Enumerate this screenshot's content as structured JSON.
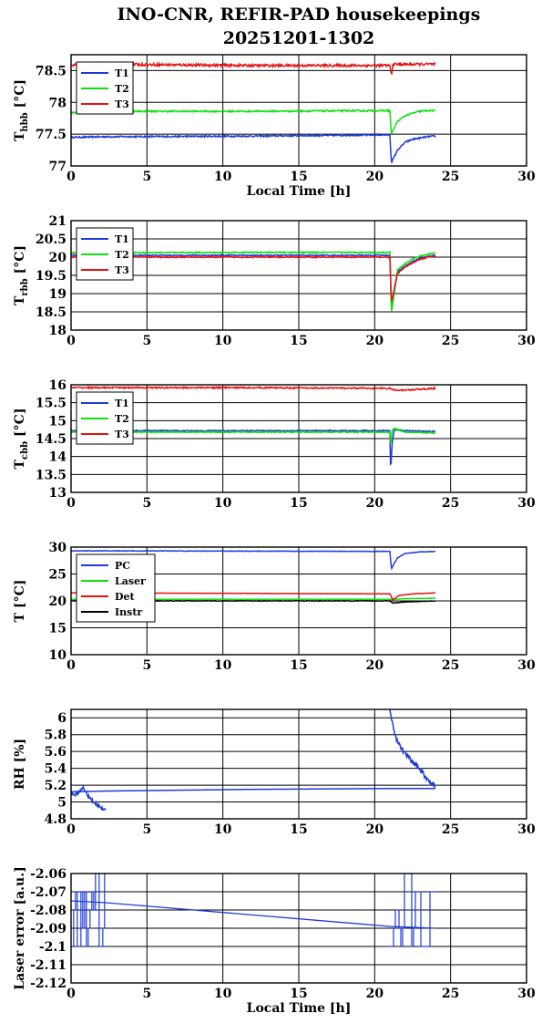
{
  "title": {
    "line1": "INO-CNR, REFIR-PAD housekeepings",
    "line2": "20251201-1302"
  },
  "colors": {
    "blue": "#1f3bd9",
    "green": "#10e010",
    "red": "#e81010",
    "black": "#000000"
  },
  "chart_data": [
    {
      "type": "line",
      "ylabel_main": "T",
      "ylabel_sub": "hbb",
      "ylabel_unit": "[°C]",
      "xlabel": "Local Time [h]",
      "xlim": [
        0,
        30
      ],
      "ylim": [
        77,
        78.75
      ],
      "xticks": [
        0,
        5,
        10,
        15,
        20,
        25,
        30
      ],
      "yticks": [
        77,
        77.5,
        78,
        78.5
      ],
      "ytick_labels": [
        "77",
        "77.5",
        "78",
        "78.5"
      ],
      "legend": "top-left",
      "series": [
        {
          "name": "T1",
          "color": "#1f3bd9",
          "x": [
            0,
            2.3,
            12,
            21,
            21.1,
            21.5,
            22,
            22.5,
            23,
            23.5,
            24
          ],
          "y": [
            77.45,
            77.46,
            77.47,
            77.49,
            77.05,
            77.25,
            77.37,
            77.42,
            77.44,
            77.46,
            77.47
          ],
          "noise": 0.012
        },
        {
          "name": "T2",
          "color": "#10e010",
          "x": [
            0,
            2.3,
            12,
            21,
            21.1,
            21.5,
            22,
            22.5,
            23,
            23.5,
            24
          ],
          "y": [
            77.84,
            77.86,
            77.86,
            77.87,
            77.5,
            77.7,
            77.79,
            77.83,
            77.86,
            77.87,
            77.87
          ],
          "noise": 0.012
        },
        {
          "name": "T3",
          "color": "#e81010",
          "x": [
            0,
            2.3,
            12,
            21,
            21.1,
            21.2,
            22,
            23,
            24
          ],
          "y": [
            78.59,
            78.6,
            78.58,
            78.58,
            78.42,
            78.6,
            78.6,
            78.6,
            78.6
          ],
          "noise": 0.02
        }
      ]
    },
    {
      "type": "line",
      "ylabel_main": "T",
      "ylabel_sub": "rbb",
      "ylabel_unit": "[°C]",
      "xlabel": "",
      "xlim": [
        0,
        30
      ],
      "ylim": [
        18,
        21
      ],
      "xticks": [
        0,
        5,
        10,
        15,
        20,
        25,
        30
      ],
      "yticks": [
        18,
        18.5,
        19,
        19.5,
        20,
        20.5,
        21
      ],
      "ytick_labels": [
        "18",
        "18.5",
        "19",
        "19.5",
        "20",
        "20.5",
        "21"
      ],
      "legend": "top-left",
      "series": [
        {
          "name": "T1",
          "color": "#1f3bd9",
          "x": [
            0,
            12,
            21,
            21.1,
            21.5,
            22,
            22.5,
            23,
            23.5,
            24
          ],
          "y": [
            20.05,
            20.05,
            20.05,
            18.5,
            19.6,
            19.75,
            19.88,
            19.97,
            20.02,
            20.05
          ],
          "noise": 0.015
        },
        {
          "name": "T2",
          "color": "#10e010",
          "x": [
            0,
            12,
            21,
            21.1,
            21.5,
            22,
            22.5,
            23,
            23.5,
            24
          ],
          "y": [
            20.12,
            20.13,
            20.13,
            18.45,
            19.65,
            19.82,
            19.95,
            20.03,
            20.08,
            20.12
          ],
          "noise": 0.015
        },
        {
          "name": "T3",
          "color": "#e81010",
          "x": [
            0,
            12,
            21,
            21.1,
            21.5,
            22,
            22.5,
            23,
            23.5,
            24
          ],
          "y": [
            20.0,
            20.0,
            20.0,
            18.75,
            19.55,
            19.72,
            19.85,
            19.94,
            20.0,
            20.02
          ],
          "noise": 0.015
        }
      ]
    },
    {
      "type": "line",
      "ylabel_main": "T",
      "ylabel_sub": "cbb",
      "ylabel_unit": "[°C]",
      "xlabel": "",
      "xlim": [
        0,
        30
      ],
      "ylim": [
        13,
        16
      ],
      "xticks": [
        0,
        5,
        10,
        15,
        20,
        25,
        30
      ],
      "yticks": [
        13,
        13.5,
        14,
        14.5,
        15,
        15.5,
        16
      ],
      "ytick_labels": [
        "13",
        "13.5",
        "14",
        "14.5",
        "15",
        "15.5",
        "16"
      ],
      "legend": "top-left",
      "series": [
        {
          "name": "T1",
          "color": "#1f3bd9",
          "x": [
            0,
            12,
            21,
            21.05,
            21.15,
            21.3,
            22,
            24
          ],
          "y": [
            14.72,
            14.72,
            14.72,
            13.55,
            14.4,
            14.75,
            14.72,
            14.7
          ],
          "noise": 0.015
        },
        {
          "name": "T2",
          "color": "#10e010",
          "x": [
            0,
            12,
            21,
            21.05,
            21.15,
            21.3,
            22,
            24
          ],
          "y": [
            14.68,
            14.68,
            14.68,
            14.3,
            14.75,
            14.78,
            14.68,
            14.66
          ],
          "noise": 0.015
        },
        {
          "name": "T3",
          "color": "#e81010",
          "x": [
            0,
            12,
            21,
            21.3,
            22,
            23,
            24
          ],
          "y": [
            15.92,
            15.92,
            15.9,
            15.85,
            15.85,
            15.88,
            15.9
          ],
          "noise": 0.02
        }
      ]
    },
    {
      "type": "line",
      "ylabel_main": "T",
      "ylabel_sub": "",
      "ylabel_unit": "[°C]",
      "xlabel": "",
      "xlim": [
        0,
        30
      ],
      "ylim": [
        10,
        30
      ],
      "xticks": [
        0,
        5,
        10,
        15,
        20,
        25,
        30
      ],
      "yticks": [
        10,
        15,
        20,
        25,
        30
      ],
      "ytick_labels": [
        "10",
        "15",
        "20",
        "25",
        "30"
      ],
      "legend": "top-left",
      "series": [
        {
          "name": "PC",
          "color": "#1f3bd9",
          "x": [
            0,
            2.3,
            21,
            21.1,
            21.5,
            22,
            23,
            24
          ],
          "y": [
            29.3,
            29.3,
            29.2,
            26.0,
            28.0,
            28.8,
            29.1,
            29.2
          ],
          "noise": 0.05
        },
        {
          "name": "Laser",
          "color": "#10e010",
          "x": [
            0,
            21,
            21.2,
            22,
            24
          ],
          "y": [
            20.3,
            20.3,
            20.3,
            20.4,
            20.5
          ],
          "noise": 0.03
        },
        {
          "name": "Det",
          "color": "#e81010",
          "x": [
            0,
            21,
            21.2,
            21.6,
            22.5,
            24
          ],
          "y": [
            21.5,
            21.3,
            20.2,
            21.0,
            21.3,
            21.5
          ],
          "noise": 0.03
        },
        {
          "name": "Instr",
          "color": "#000000",
          "x": [
            0,
            21,
            21.2,
            22,
            24
          ],
          "y": [
            20.0,
            20.0,
            19.6,
            19.8,
            20.0
          ],
          "noise": 0.05
        }
      ]
    },
    {
      "type": "line",
      "ylabel_main": "RH [%]",
      "ylabel_sub": "",
      "ylabel_unit": "",
      "xlabel": "",
      "xlim": [
        0,
        30
      ],
      "ylim": [
        4.8,
        6.1
      ],
      "xticks": [
        0,
        5,
        10,
        15,
        20,
        25,
        30
      ],
      "yticks": [
        4.8,
        5,
        5.2,
        5.4,
        5.6,
        5.8,
        6
      ],
      "ytick_labels": [
        "4.8",
        "5",
        "5.2",
        "5.4",
        "5.6",
        "5.8",
        "6"
      ],
      "legend": "none",
      "series": [
        {
          "name": "",
          "color": "#1f3bd9",
          "x": [
            0,
            0.3,
            0.8,
            1.2,
            1.6,
            2.0,
            2.3
          ],
          "y": [
            5.12,
            5.08,
            5.17,
            5.05,
            4.98,
            4.93,
            4.9
          ],
          "noise": 0.02
        },
        {
          "name": "",
          "color": "#1f3bd9",
          "x": [
            0,
            2.3,
            12,
            21,
            24
          ],
          "y": [
            5.12,
            5.13,
            5.15,
            5.16,
            5.16
          ],
          "noise": 0.0
        },
        {
          "name": "",
          "color": "#1f3bd9",
          "x": [
            21,
            21.3,
            21.8,
            22.5,
            23,
            23.5,
            24
          ],
          "y": [
            6.08,
            5.8,
            5.62,
            5.48,
            5.38,
            5.27,
            5.18
          ],
          "noise": 0.03
        }
      ]
    },
    {
      "type": "line",
      "ylabel_main": "Laser error [a.u.]",
      "ylabel_sub": "",
      "ylabel_unit": "",
      "xlabel": "Local Time [h]",
      "xlim": [
        0,
        30
      ],
      "ylim": [
        -2.12,
        -2.06
      ],
      "xticks": [
        0,
        5,
        10,
        15,
        20,
        25,
        30
      ],
      "yticks": [
        -2.12,
        -2.11,
        -2.1,
        -2.09,
        -2.08,
        -2.07,
        -2.06
      ],
      "ytick_labels": [
        "-2.12",
        "-2.11",
        "-2.1",
        "-2.09",
        "-2.08",
        "-2.07",
        "-2.06"
      ],
      "legend": "none",
      "series": [
        {
          "name": "",
          "color": "#1f3bd9",
          "x": [
            0,
            2.3,
            21.0,
            24
          ],
          "y": [
            -2.075,
            -2.076,
            -2.089,
            -2.09
          ],
          "noise": 0.0,
          "jitter": [
            [
              0.05,
              2.3,
              -2.06,
              -2.1
            ],
            [
              21.0,
              24.0,
              -2.06,
              -2.1
            ]
          ]
        },
        {
          "name": "",
          "color": "#1f3bd9",
          "x": [
            21.9,
            21.9
          ],
          "y": [
            -2.1,
            -2.118
          ],
          "noise": 0.0
        }
      ]
    }
  ]
}
